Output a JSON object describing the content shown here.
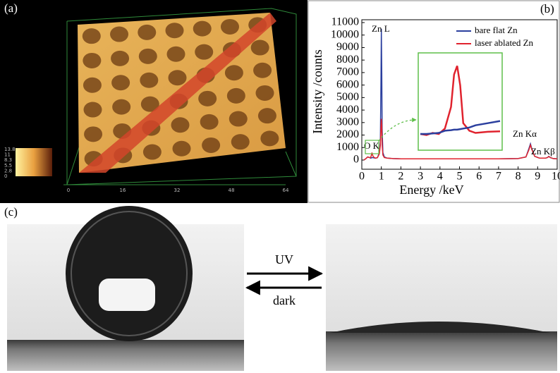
{
  "panel_labels": [
    "(a)",
    "(b)",
    "(c)"
  ],
  "surface": {
    "xticks": [
      "0",
      "16",
      "32",
      "48",
      "64"
    ],
    "scale_labels": [
      "13.8",
      "11",
      "8.3",
      "5.5",
      "2.8",
      "0"
    ]
  },
  "chart_data": {
    "type": "line",
    "xlabel": "Energy /keV",
    "ylabel": "Intensity /counts",
    "x": [
      0.1,
      0.2,
      0.3,
      0.4,
      0.45,
      0.5,
      0.52,
      0.55,
      0.6,
      0.7,
      0.8,
      0.9,
      0.95,
      0.98,
      1.0,
      1.02,
      1.04,
      1.08,
      1.15,
      1.3,
      1.6,
      2,
      3,
      4,
      5,
      6,
      7,
      8,
      8.4,
      8.55,
      8.63,
      8.7,
      8.85,
      9.1,
      9.4,
      9.5,
      9.57,
      9.65,
      9.8,
      10
    ],
    "series": [
      {
        "name": "bare flat Zn",
        "color": "#2b3f9e",
        "values": [
          0,
          100,
          250,
          200,
          150,
          180,
          200,
          200,
          180,
          150,
          200,
          600,
          1500,
          6000,
          10500,
          7000,
          2500,
          600,
          250,
          150,
          120,
          100,
          100,
          100,
          100,
          100,
          100,
          120,
          250,
          900,
          1300,
          900,
          300,
          150,
          150,
          200,
          300,
          200,
          120,
          100
        ]
      },
      {
        "name": "laser ablated Zn",
        "color": "#e0232e",
        "values": [
          0,
          100,
          250,
          200,
          200,
          450,
          600,
          400,
          250,
          150,
          200,
          500,
          1200,
          2500,
          3300,
          2800,
          1200,
          400,
          200,
          150,
          120,
          100,
          100,
          100,
          100,
          100,
          100,
          120,
          250,
          800,
          1200,
          850,
          300,
          150,
          150,
          200,
          280,
          200,
          120,
          100
        ]
      }
    ],
    "xlim": [
      0,
      10
    ],
    "xticks": [
      0,
      1,
      2,
      3,
      4,
      5,
      6,
      7,
      8,
      9,
      10
    ],
    "ylim": [
      0,
      11000
    ],
    "yticks": [
      0,
      1000,
      2000,
      3000,
      4000,
      5000,
      6000,
      7000,
      8000,
      9000,
      10000,
      11000
    ],
    "annotations": [
      "Zn L",
      "O K",
      "Zn Kα",
      "Zn Kβ"
    ],
    "inset": {
      "x": [
        0.4,
        0.42,
        0.44,
        0.46,
        0.48,
        0.5,
        0.51,
        0.52,
        0.53,
        0.54,
        0.56,
        0.58,
        0.62,
        0.66
      ],
      "xlim": [
        0.4,
        0.66
      ],
      "ylim": [
        0,
        900
      ],
      "series": [
        {
          "color": "#e0232e",
          "values": [
            150,
            140,
            160,
            150,
            200,
            400,
            700,
            780,
            600,
            250,
            180,
            160,
            170,
            175
          ]
        },
        {
          "color": "#2b3f9e",
          "values": [
            150,
            150,
            155,
            160,
            180,
            185,
            190,
            190,
            195,
            200,
            210,
            230,
            250,
            270
          ]
        }
      ]
    }
  },
  "switch": {
    "forward": "UV",
    "backward": "dark"
  }
}
